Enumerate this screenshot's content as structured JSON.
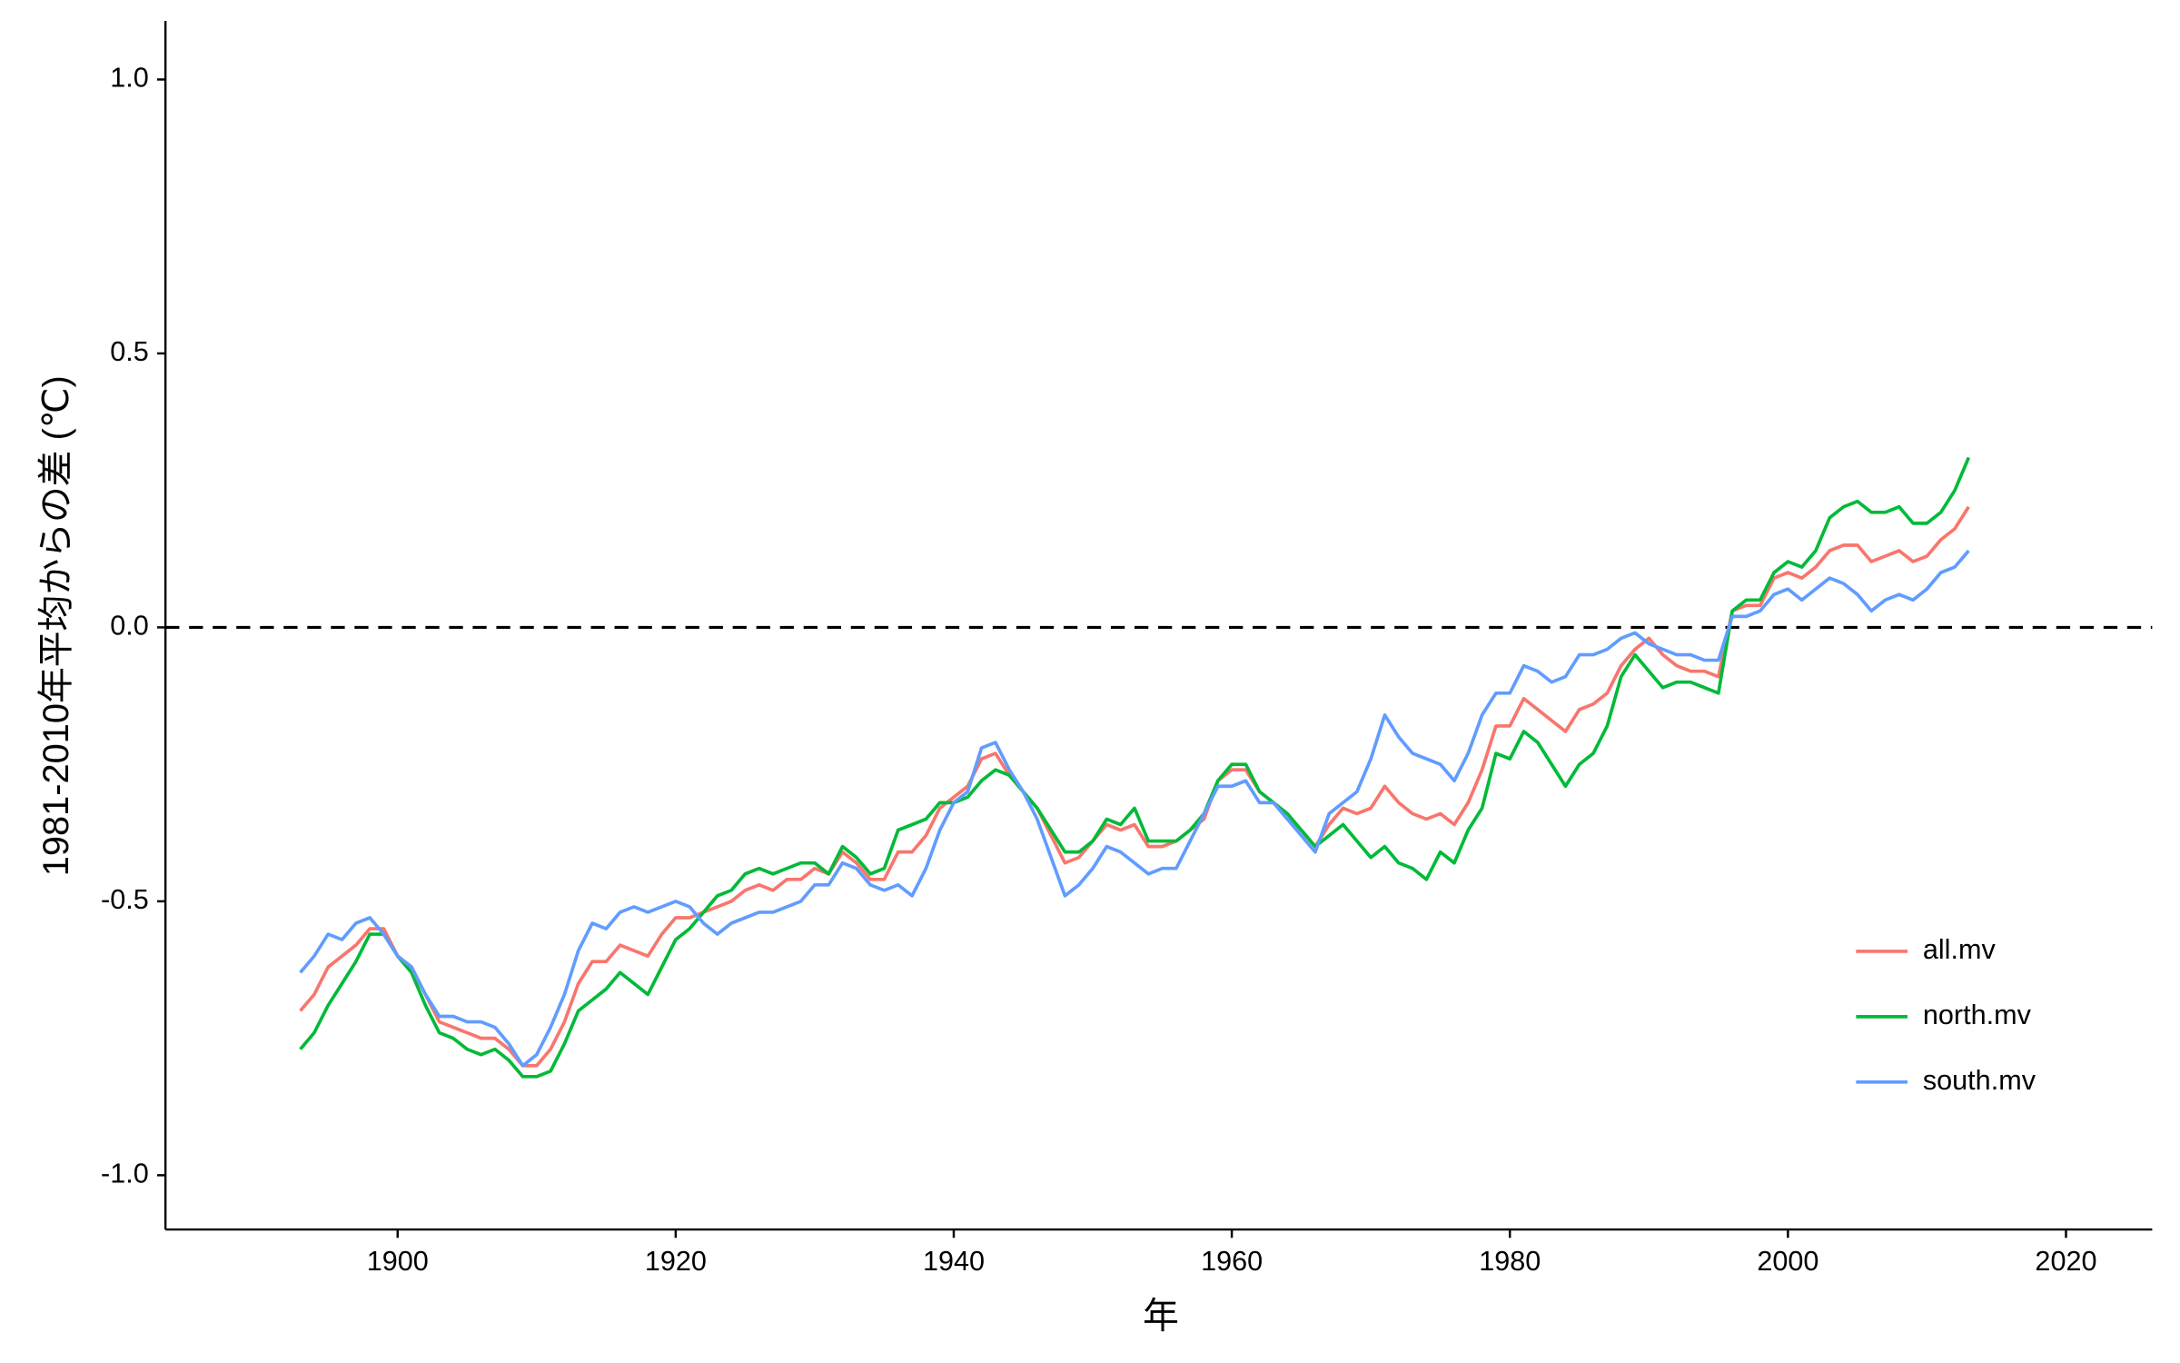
{
  "chart_data": {
    "type": "line",
    "xlabel": "年",
    "ylabel": "1981-2010年平均からの差 (℃)",
    "x": [
      1893,
      1894,
      1895,
      1896,
      1897,
      1898,
      1899,
      1900,
      1901,
      1902,
      1903,
      1904,
      1905,
      1906,
      1907,
      1908,
      1909,
      1910,
      1911,
      1912,
      1913,
      1914,
      1915,
      1916,
      1917,
      1918,
      1919,
      1920,
      1921,
      1922,
      1923,
      1924,
      1925,
      1926,
      1927,
      1928,
      1929,
      1930,
      1931,
      1932,
      1933,
      1934,
      1935,
      1936,
      1937,
      1938,
      1939,
      1940,
      1941,
      1942,
      1943,
      1944,
      1945,
      1946,
      1947,
      1948,
      1949,
      1950,
      1951,
      1952,
      1953,
      1954,
      1955,
      1956,
      1957,
      1958,
      1959,
      1960,
      1961,
      1962,
      1963,
      1964,
      1965,
      1966,
      1967,
      1968,
      1969,
      1970,
      1971,
      1972,
      1973,
      1974,
      1975,
      1976,
      1977,
      1978,
      1979,
      1980,
      1981,
      1982,
      1983,
      1984,
      1985,
      1986,
      1987,
      1988,
      1989,
      1990,
      1991,
      1992,
      1993,
      1994,
      1995,
      1996,
      1997,
      1998,
      1999,
      2000,
      2001,
      2002,
      2003,
      2004,
      2005,
      2006,
      2007,
      2008,
      2009,
      2010,
      2011,
      2012,
      2013
    ],
    "series": [
      {
        "name": "all.mv",
        "color": "#F8766D",
        "values": [
          -0.7,
          -0.67,
          -0.62,
          -0.6,
          -0.58,
          -0.55,
          -0.55,
          -0.6,
          -0.62,
          -0.67,
          -0.72,
          -0.73,
          -0.74,
          -0.75,
          -0.75,
          -0.77,
          -0.8,
          -0.8,
          -0.77,
          -0.72,
          -0.65,
          -0.61,
          -0.61,
          -0.58,
          -0.59,
          -0.6,
          -0.56,
          -0.53,
          -0.53,
          -0.52,
          -0.51,
          -0.5,
          -0.48,
          -0.47,
          -0.48,
          -0.46,
          -0.46,
          -0.44,
          -0.45,
          -0.41,
          -0.43,
          -0.46,
          -0.46,
          -0.41,
          -0.41,
          -0.38,
          -0.33,
          -0.31,
          -0.29,
          -0.24,
          -0.23,
          -0.27,
          -0.3,
          -0.33,
          -0.38,
          -0.43,
          -0.42,
          -0.39,
          -0.36,
          -0.37,
          -0.36,
          -0.4,
          -0.4,
          -0.39,
          -0.37,
          -0.35,
          -0.28,
          -0.26,
          -0.26,
          -0.3,
          -0.32,
          -0.35,
          -0.37,
          -0.4,
          -0.36,
          -0.33,
          -0.34,
          -0.33,
          -0.29,
          -0.32,
          -0.34,
          -0.35,
          -0.34,
          -0.36,
          -0.32,
          -0.26,
          -0.18,
          -0.18,
          -0.13,
          -0.15,
          -0.17,
          -0.19,
          -0.15,
          -0.14,
          -0.12,
          -0.07,
          -0.04,
          -0.02,
          -0.05,
          -0.07,
          -0.08,
          -0.08,
          -0.09,
          0.03,
          0.04,
          0.04,
          0.09,
          0.1,
          0.09,
          0.11,
          0.14,
          0.15,
          0.15,
          0.12,
          0.13,
          0.14,
          0.12,
          0.13,
          0.16,
          0.18,
          0.22
        ]
      },
      {
        "name": "north.mv",
        "color": "#00BA38",
        "values": [
          -0.77,
          -0.74,
          -0.69,
          -0.65,
          -0.61,
          -0.56,
          -0.56,
          -0.6,
          -0.63,
          -0.69,
          -0.74,
          -0.75,
          -0.77,
          -0.78,
          -0.77,
          -0.79,
          -0.82,
          -0.82,
          -0.81,
          -0.76,
          -0.7,
          -0.68,
          -0.66,
          -0.63,
          -0.65,
          -0.67,
          -0.62,
          -0.57,
          -0.55,
          -0.52,
          -0.49,
          -0.48,
          -0.45,
          -0.44,
          -0.45,
          -0.44,
          -0.43,
          -0.43,
          -0.45,
          -0.4,
          -0.42,
          -0.45,
          -0.44,
          -0.37,
          -0.36,
          -0.35,
          -0.32,
          -0.32,
          -0.31,
          -0.28,
          -0.26,
          -0.27,
          -0.3,
          -0.33,
          -0.37,
          -0.41,
          -0.41,
          -0.39,
          -0.35,
          -0.36,
          -0.33,
          -0.39,
          -0.39,
          -0.39,
          -0.37,
          -0.34,
          -0.28,
          -0.25,
          -0.25,
          -0.3,
          -0.32,
          -0.34,
          -0.37,
          -0.4,
          -0.38,
          -0.36,
          -0.39,
          -0.42,
          -0.4,
          -0.43,
          -0.44,
          -0.46,
          -0.41,
          -0.43,
          -0.37,
          -0.33,
          -0.23,
          -0.24,
          -0.19,
          -0.21,
          -0.25,
          -0.29,
          -0.25,
          -0.23,
          -0.18,
          -0.09,
          -0.05,
          -0.08,
          -0.11,
          -0.1,
          -0.1,
          -0.11,
          -0.12,
          0.03,
          0.05,
          0.05,
          0.1,
          0.12,
          0.11,
          0.14,
          0.2,
          0.22,
          0.23,
          0.21,
          0.21,
          0.22,
          0.19,
          0.19,
          0.21,
          0.25,
          0.31
        ]
      },
      {
        "name": "south.mv",
        "color": "#619CFF",
        "values": [
          -0.63,
          -0.6,
          -0.56,
          -0.57,
          -0.54,
          -0.53,
          -0.56,
          -0.6,
          -0.62,
          -0.67,
          -0.71,
          -0.71,
          -0.72,
          -0.72,
          -0.73,
          -0.76,
          -0.8,
          -0.78,
          -0.73,
          -0.67,
          -0.59,
          -0.54,
          -0.55,
          -0.52,
          -0.51,
          -0.52,
          -0.51,
          -0.5,
          -0.51,
          -0.54,
          -0.56,
          -0.54,
          -0.53,
          -0.52,
          -0.52,
          -0.51,
          -0.5,
          -0.47,
          -0.47,
          -0.43,
          -0.44,
          -0.47,
          -0.48,
          -0.47,
          -0.49,
          -0.44,
          -0.37,
          -0.32,
          -0.3,
          -0.22,
          -0.21,
          -0.26,
          -0.3,
          -0.35,
          -0.42,
          -0.49,
          -0.47,
          -0.44,
          -0.4,
          -0.41,
          -0.43,
          -0.45,
          -0.44,
          -0.44,
          -0.39,
          -0.34,
          -0.29,
          -0.29,
          -0.28,
          -0.32,
          -0.32,
          -0.35,
          -0.38,
          -0.41,
          -0.34,
          -0.32,
          -0.3,
          -0.24,
          -0.16,
          -0.2,
          -0.23,
          -0.24,
          -0.25,
          -0.28,
          -0.23,
          -0.16,
          -0.12,
          -0.12,
          -0.07,
          -0.08,
          -0.1,
          -0.09,
          -0.05,
          -0.05,
          -0.04,
          -0.02,
          -0.01,
          -0.03,
          -0.04,
          -0.05,
          -0.05,
          -0.06,
          -0.06,
          0.02,
          0.02,
          0.03,
          0.06,
          0.07,
          0.05,
          0.07,
          0.09,
          0.08,
          0.06,
          0.03,
          0.05,
          0.06,
          0.05,
          0.07,
          0.1,
          0.11,
          0.14
        ]
      }
    ],
    "xlim": [
      1883.3,
      2026.2
    ],
    "ylim": [
      -1.099,
      1.107
    ],
    "xticks": [
      1900,
      1920,
      1940,
      1960,
      1980,
      2000,
      2020
    ],
    "yticks": [
      {
        "value": -1,
        "label": "-1.0"
      },
      {
        "value": -0.5,
        "label": "-0.5"
      },
      {
        "value": 0,
        "label": "0.0"
      },
      {
        "value": 0.5,
        "label": "0.5"
      },
      {
        "value": 1,
        "label": "1.0"
      }
    ],
    "hline": 0,
    "grid": false,
    "legend": "right"
  }
}
